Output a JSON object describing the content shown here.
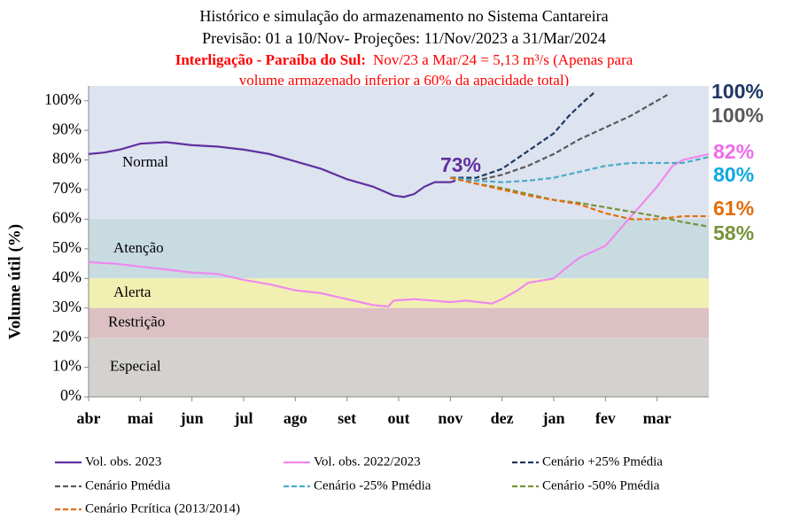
{
  "chart_data": {
    "type": "line",
    "title": "Histórico e simulação do armazenamento no Sistema Cantareira",
    "subtitle": "Previsão: 01 a 10/Nov- Projeções: 11/Nov/2023 a 31/Mar/2024",
    "note_bold": "Interligação - Paraíba do Sul:",
    "note_text": "Nov/23 a Mar/24 = 5,13 m³/s (Apenas para",
    "note_text2": "volume armazenado inferior a 60% da apacidade total)",
    "note_color": "#ff0000",
    "ylabel": "Volume útil (%)",
    "xlim": [
      0,
      12
    ],
    "ylim": [
      0,
      105
    ],
    "xticks": [
      {
        "value": 0,
        "label": "abr"
      },
      {
        "value": 1,
        "label": "mai"
      },
      {
        "value": 2,
        "label": "jun"
      },
      {
        "value": 3,
        "label": "jul"
      },
      {
        "value": 4,
        "label": "ago"
      },
      {
        "value": 5,
        "label": "set"
      },
      {
        "value": 6,
        "label": "out"
      },
      {
        "value": 7,
        "label": "nov"
      },
      {
        "value": 8,
        "label": "dez"
      },
      {
        "value": 9,
        "label": "jan"
      },
      {
        "value": 10,
        "label": "fev"
      },
      {
        "value": 11,
        "label": "mar"
      }
    ],
    "yticks": [
      {
        "value": 0,
        "label": "0%"
      },
      {
        "value": 10,
        "label": "10%"
      },
      {
        "value": 20,
        "label": "20%"
      },
      {
        "value": 30,
        "label": "30%"
      },
      {
        "value": 40,
        "label": "40%"
      },
      {
        "value": 50,
        "label": "50%"
      },
      {
        "value": 60,
        "label": "60%"
      },
      {
        "value": 70,
        "label": "70%"
      },
      {
        "value": 80,
        "label": "80%"
      },
      {
        "value": 90,
        "label": "90%"
      },
      {
        "value": 100,
        "label": "100%"
      }
    ],
    "bands": [
      {
        "name": "Normal",
        "from": 60,
        "to": 105,
        "color": "#dde3ef"
      },
      {
        "name": "Atenção",
        "from": 40,
        "to": 60,
        "color": "#c8dbe1"
      },
      {
        "name": "Alerta",
        "from": 30,
        "to": 40,
        "color": "#f2efb2"
      },
      {
        "name": "Restrição",
        "from": 20,
        "to": 30,
        "color": "#dcc0c4"
      },
      {
        "name": "Especial",
        "from": 0,
        "to": 20,
        "color": "#d4d2ce"
      }
    ],
    "series": [
      {
        "name": "Vol. obs. 2023",
        "color": "#6030a0",
        "dash": false,
        "x": [
          0,
          0.3,
          0.6,
          1,
          1.5,
          2,
          2.5,
          3,
          3.5,
          4,
          4.5,
          5,
          5.5,
          5.9,
          6.1,
          6.3,
          6.5,
          6.7,
          7,
          7.1
        ],
        "values": [
          82,
          82.5,
          83.5,
          85.5,
          86,
          85,
          84.5,
          83.5,
          82,
          79.5,
          77,
          73.5,
          71,
          68,
          67.5,
          68.5,
          71,
          72.5,
          72.5,
          73
        ]
      },
      {
        "name": "Vol. obs. 2022/2023",
        "color": "#ee8aee",
        "dash": false,
        "x": [
          0,
          0.5,
          1,
          1.5,
          2,
          2.5,
          3,
          3.5,
          4,
          4.5,
          5,
          5.5,
          5.8,
          5.9,
          6.3,
          7,
          7.3,
          7.8,
          8,
          8.3,
          8.5,
          9,
          9.2,
          9.5,
          10,
          10.2,
          10.5,
          11,
          11.3,
          11.5,
          12
        ],
        "values": [
          45.5,
          45,
          44,
          43,
          42,
          41.5,
          39.5,
          38,
          36,
          35,
          33,
          31,
          30.5,
          32.5,
          33,
          32,
          32.5,
          31.5,
          33,
          36,
          38.5,
          40,
          43,
          47,
          51,
          55,
          61,
          71,
          78,
          80,
          82
        ]
      },
      {
        "name": "Cenário +25% Pmédia",
        "color": "#1f3864",
        "dash": true,
        "x": [
          7,
          7.5,
          8,
          8.5,
          9,
          9.3,
          9.6,
          9.8
        ],
        "values": [
          74,
          74,
          77,
          83,
          89,
          95,
          100,
          103
        ]
      },
      {
        "name": "Cenário Pmédia",
        "color": "#595959",
        "dash": true,
        "x": [
          7,
          7.5,
          8,
          8.5,
          9,
          9.5,
          10,
          10.5,
          11,
          11.2
        ],
        "values": [
          74,
          73,
          75,
          78,
          82,
          87,
          91,
          95,
          100,
          102
        ]
      },
      {
        "name": "Cenário -25% Pmédia",
        "color": "#4bacc6",
        "dash": true,
        "x": [
          7,
          7.5,
          8,
          8.5,
          9,
          9.5,
          10,
          10.5,
          11,
          11.5,
          12
        ],
        "values": [
          74,
          73,
          72.5,
          73,
          74,
          76,
          78,
          79,
          79,
          79,
          81
        ]
      },
      {
        "name": "Cenário -50% Pmédia",
        "color": "#77933c",
        "dash": true,
        "x": [
          7,
          7.5,
          8,
          8.5,
          9,
          9.5,
          10,
          10.5,
          11,
          11.5,
          12
        ],
        "values": [
          74,
          72,
          70.5,
          68.5,
          66.5,
          65.5,
          64,
          62.5,
          61,
          59,
          57.5
        ]
      },
      {
        "name": "Cenário Pcrítica (2013/2014)",
        "color": "#e46c0a",
        "dash": true,
        "x": [
          7,
          7.5,
          8,
          8.5,
          9,
          9.5,
          10,
          10.5,
          11,
          11.5,
          12
        ],
        "values": [
          74,
          72,
          70,
          68,
          66.5,
          65,
          62,
          60,
          60,
          61,
          61
        ]
      }
    ],
    "annotations": [
      {
        "text": "73%",
        "color": "#6030a0"
      },
      {
        "text": "100%",
        "color": "#1f3864"
      },
      {
        "text": "100%",
        "color": "#595959"
      },
      {
        "text": "82%",
        "color": "#ee6aee"
      },
      {
        "text": "80%",
        "color": "#0fa9e0"
      },
      {
        "text": "61%",
        "color": "#e46c0a"
      },
      {
        "text": "58%",
        "color": "#77933c"
      }
    ]
  }
}
